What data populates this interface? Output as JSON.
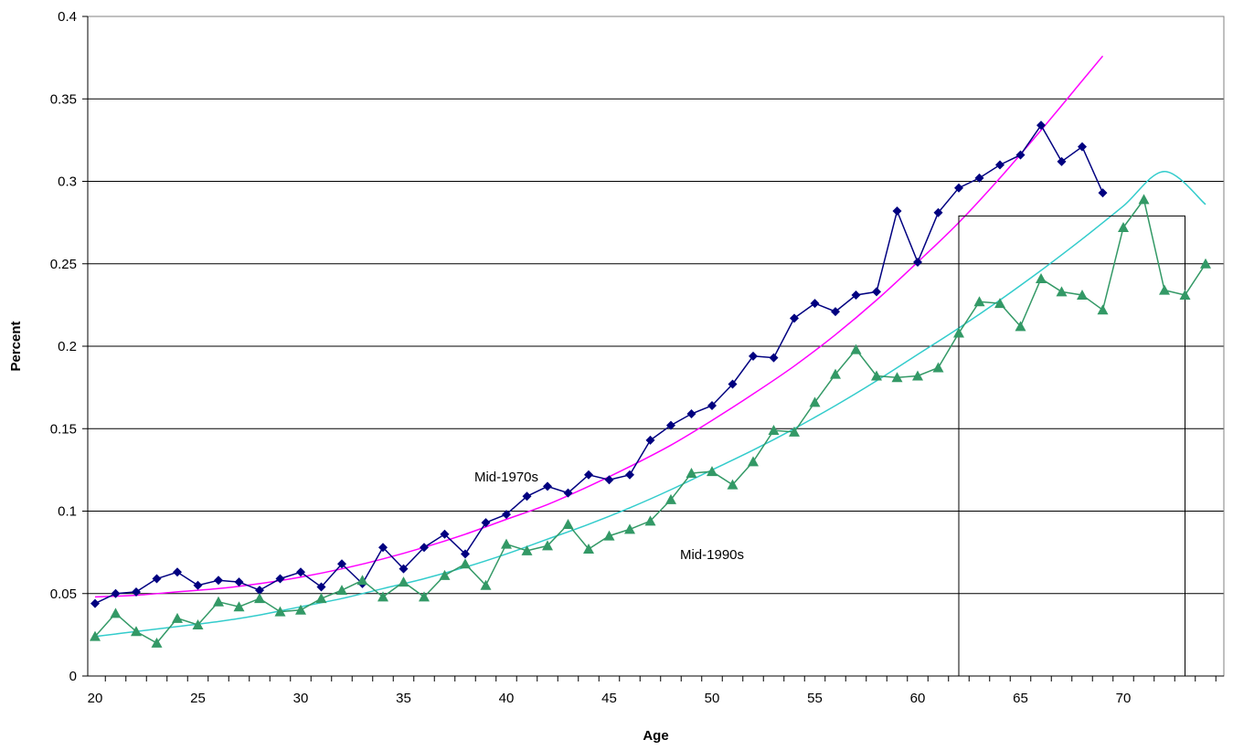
{
  "chart_data": {
    "type": "line",
    "title": "",
    "xlabel": "Age",
    "ylabel": "Percent",
    "xlim": [
      20,
      74
    ],
    "ylim": [
      0,
      0.4
    ],
    "x_ticks": [
      20,
      25,
      30,
      35,
      40,
      45,
      50,
      55,
      60,
      65,
      70
    ],
    "x_tick_labels": [
      "20",
      "25",
      "30",
      "35",
      "40",
      "45",
      "50",
      "55",
      "60",
      "65",
      "70"
    ],
    "y_ticks": [
      0,
      0.05,
      0.1,
      0.15,
      0.2,
      0.25,
      0.3,
      0.35,
      0.4
    ],
    "y_tick_labels": [
      "0",
      "0.05",
      "0.1",
      "0.15",
      "0.2",
      "0.25",
      "0.3",
      "0.35",
      "0.4"
    ],
    "grid": "horizontal",
    "legend": "none",
    "annotations": [
      {
        "text": "Mid-1970s",
        "x": 40,
        "y": 0.118
      },
      {
        "text": "Mid-1990s",
        "x": 50,
        "y": 0.071
      }
    ],
    "series": [
      {
        "marker": "diamond",
        "color": "#000080",
        "x": [
          20,
          21,
          22,
          23,
          24,
          25,
          26,
          27,
          28,
          29,
          30,
          31,
          32,
          33,
          34,
          35,
          36,
          37,
          38,
          39,
          40,
          41,
          42,
          43,
          44,
          45,
          46,
          47,
          48,
          49,
          50,
          51,
          52,
          53,
          54,
          55,
          56,
          57,
          58,
          59,
          60,
          61,
          62,
          63,
          64,
          65,
          66,
          67,
          68,
          69
        ],
        "y": [
          0.044,
          0.05,
          0.051,
          0.059,
          0.063,
          0.055,
          0.058,
          0.057,
          0.052,
          0.059,
          0.063,
          0.054,
          0.068,
          0.056,
          0.078,
          0.065,
          0.078,
          0.086,
          0.074,
          0.093,
          0.098,
          0.109,
          0.115,
          0.111,
          0.122,
          0.119,
          0.122,
          0.143,
          0.152,
          0.159,
          0.164,
          0.177,
          0.194,
          0.193,
          0.217,
          0.226,
          0.221,
          0.231,
          0.233,
          0.282,
          0.251,
          0.281,
          0.296,
          0.302,
          0.31,
          0.316,
          0.334,
          0.312,
          0.321,
          0.293
        ]
      },
      {
        "marker": "triangle",
        "color": "#339966",
        "x": [
          20,
          21,
          22,
          23,
          24,
          25,
          26,
          27,
          28,
          29,
          30,
          31,
          32,
          33,
          34,
          35,
          36,
          37,
          38,
          39,
          40,
          41,
          42,
          43,
          44,
          45,
          46,
          47,
          48,
          49,
          50,
          51,
          52,
          53,
          54,
          55,
          56,
          57,
          58,
          59,
          60,
          61,
          62,
          63,
          64,
          65,
          66,
          67,
          68,
          69,
          70,
          71,
          72,
          73,
          74
        ],
        "y": [
          0.024,
          0.038,
          0.027,
          0.02,
          0.035,
          0.031,
          0.045,
          0.042,
          0.047,
          0.039,
          0.04,
          0.047,
          0.052,
          0.058,
          0.048,
          0.057,
          0.048,
          0.061,
          0.068,
          0.055,
          0.08,
          0.076,
          0.079,
          0.092,
          0.077,
          0.085,
          0.089,
          0.094,
          0.107,
          0.123,
          0.124,
          0.116,
          0.13,
          0.149,
          0.148,
          0.166,
          0.183,
          0.198,
          0.182,
          0.181,
          0.182,
          0.187,
          0.208,
          0.227,
          0.226,
          0.212,
          0.241,
          0.233,
          0.231,
          0.222,
          0.272,
          0.289,
          0.234,
          0.231,
          0.25
        ]
      },
      {
        "kind": "trendline",
        "color": "#FF00FF",
        "x": [
          20,
          22,
          24,
          26,
          28,
          30,
          32,
          34,
          36,
          38,
          40,
          42,
          44,
          46,
          48,
          50,
          52,
          54,
          56,
          58,
          60,
          62,
          64,
          66,
          68,
          69
        ],
        "y": [
          0.048,
          0.049,
          0.051,
          0.053,
          0.056,
          0.06,
          0.065,
          0.071,
          0.078,
          0.086,
          0.095,
          0.104,
          0.115,
          0.127,
          0.14,
          0.155,
          0.171,
          0.188,
          0.207,
          0.228,
          0.251,
          0.275,
          0.302,
          0.331,
          0.361,
          0.376
        ]
      },
      {
        "kind": "trendline",
        "color": "#33CCCC",
        "x": [
          20,
          22,
          24,
          26,
          28,
          30,
          32,
          34,
          36,
          38,
          40,
          42,
          44,
          46,
          48,
          50,
          52,
          54,
          56,
          58,
          60,
          62,
          64,
          66,
          68,
          70,
          72,
          74
        ],
        "y": [
          0.024,
          0.027,
          0.03,
          0.033,
          0.037,
          0.042,
          0.047,
          0.053,
          0.059,
          0.066,
          0.074,
          0.083,
          0.092,
          0.102,
          0.113,
          0.125,
          0.137,
          0.15,
          0.164,
          0.179,
          0.195,
          0.211,
          0.228,
          0.246,
          0.265,
          0.285,
          0.306,
          0.286
        ]
      }
    ],
    "box": {
      "x": [
        62,
        73
      ],
      "y": [
        0,
        0.279
      ]
    }
  }
}
